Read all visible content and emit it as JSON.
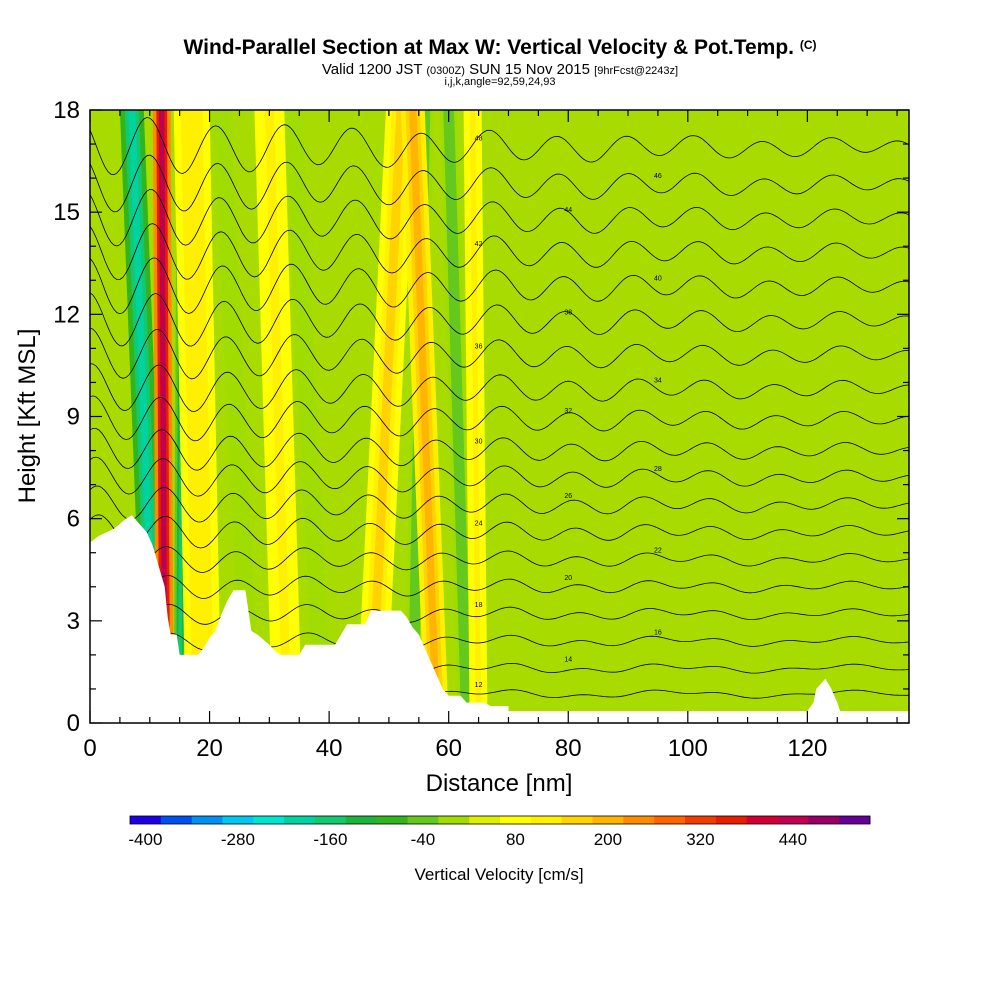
{
  "header": {
    "title": "Wind-Parallel Section at Max W: Vertical Velocity & Pot.Temp.",
    "copyright": "(C)",
    "valid_prefix": "Valid 1200 JST",
    "valid_utc": "(0300Z)",
    "valid_date": "SUN 15 Nov 2015",
    "forecast": "[9hrFcst@2243z]",
    "indices": "i,j,k,angle=92,59,24,93"
  },
  "chart_data": {
    "type": "heatmap",
    "xlabel": "Distance [nm]",
    "ylabel": "Height [Kft MSL]",
    "xlim": [
      0,
      137
    ],
    "ylim": [
      0,
      18
    ],
    "x_ticks": [
      "0",
      "20",
      "40",
      "60",
      "80",
      "100",
      "120"
    ],
    "y_ticks": [
      "0",
      "3",
      "6",
      "9",
      "12",
      "15",
      "18"
    ],
    "terrain": [
      [
        0,
        5.3
      ],
      [
        1.5,
        5.5
      ],
      [
        4,
        5.7
      ],
      [
        6,
        6.0
      ],
      [
        7,
        6.1
      ],
      [
        8,
        5.9
      ],
      [
        9.5,
        5.6
      ],
      [
        10.5,
        5.2
      ],
      [
        11.5,
        4.6
      ],
      [
        12.5,
        4.0
      ],
      [
        13,
        3.1
      ],
      [
        13.5,
        2.6
      ],
      [
        14.5,
        2.6
      ],
      [
        15,
        2.0
      ],
      [
        18,
        2.0
      ],
      [
        19,
        2.2
      ],
      [
        20,
        2.5
      ],
      [
        21,
        2.7
      ],
      [
        22,
        3.2
      ],
      [
        23,
        3.6
      ],
      [
        24,
        3.9
      ],
      [
        26,
        3.9
      ],
      [
        26.5,
        3.3
      ],
      [
        27,
        2.7
      ],
      [
        28,
        2.6
      ],
      [
        30,
        2.3
      ],
      [
        31,
        2.1
      ],
      [
        32,
        2.0
      ],
      [
        35,
        2.0
      ],
      [
        36,
        2.3
      ],
      [
        41,
        2.3
      ],
      [
        42,
        2.6
      ],
      [
        43,
        2.9
      ],
      [
        46,
        2.9
      ],
      [
        47,
        3.3
      ],
      [
        52,
        3.3
      ],
      [
        53,
        3.1
      ],
      [
        54,
        2.8
      ],
      [
        55,
        2.6
      ],
      [
        56,
        2.2
      ],
      [
        57,
        1.8
      ],
      [
        58,
        1.4
      ],
      [
        59,
        1.0
      ],
      [
        60,
        0.8
      ],
      [
        62,
        0.8
      ],
      [
        63,
        0.6
      ],
      [
        66,
        0.6
      ],
      [
        67,
        0.5
      ],
      [
        70,
        0.5
      ],
      [
        70,
        0.35
      ],
      [
        120,
        0.35
      ],
      [
        121,
        0.6
      ],
      [
        121.5,
        1.0
      ],
      [
        123,
        1.3
      ],
      [
        124,
        1.0
      ],
      [
        125,
        0.6
      ],
      [
        125.5,
        0.35
      ],
      [
        137,
        0.35
      ]
    ],
    "vertical_velocity_bands": [
      {
        "name": "downdraft",
        "base_x": 11,
        "top_x": 7,
        "width": 4,
        "value": -250
      },
      {
        "name": "updraft",
        "base_x": 12.5,
        "top_x": 12,
        "width": 3,
        "value": 400
      },
      {
        "name": "downdraft",
        "base_x": 15,
        "top_x": 15.5,
        "width": 2,
        "value": -200
      },
      {
        "name": "updraft",
        "base_x": 19,
        "top_x": 17,
        "width": 6,
        "value": 90
      },
      {
        "name": "downdraft",
        "base_x": 27,
        "top_x": 22,
        "width": 3,
        "value": -60
      },
      {
        "name": "updraft",
        "base_x": 33,
        "top_x": 30,
        "width": 5,
        "value": 70
      },
      {
        "name": "downdraft",
        "base_x": 39,
        "top_x": 34,
        "width": 3,
        "value": -60
      },
      {
        "name": "updraft",
        "base_x": 47,
        "top_x": 52,
        "width": 5,
        "value": 100
      },
      {
        "name": "downdraft",
        "base_x": 54,
        "top_x": 56,
        "width": 3,
        "value": -100
      },
      {
        "name": "updraft",
        "base_x": 58,
        "top_x": 54,
        "width": 4,
        "value": 140
      },
      {
        "name": "downdraft",
        "base_x": 63,
        "top_x": 60,
        "width": 3,
        "value": -80
      },
      {
        "name": "updraft",
        "base_x": 65,
        "top_x": 64,
        "width": 3,
        "value": 60
      }
    ],
    "potential_temperature_isolines": [
      {
        "base": 0.85,
        "amp": 0.15,
        "label": "12"
      },
      {
        "base": 1.6,
        "amp": 0.2,
        "label": "14"
      },
      {
        "base": 2.4,
        "amp": 0.25,
        "label": "16"
      },
      {
        "base": 3.2,
        "amp": 0.3,
        "label": "18"
      },
      {
        "base": 4.0,
        "amp": 0.35,
        "label": "20"
      },
      {
        "base": 4.8,
        "amp": 0.4,
        "label": "22"
      },
      {
        "base": 5.6,
        "amp": 0.5,
        "label": "24"
      },
      {
        "base": 6.4,
        "amp": 0.55,
        "label": "26"
      },
      {
        "base": 7.2,
        "amp": 0.6,
        "label": "28"
      },
      {
        "base": 8.0,
        "amp": 0.65,
        "label": "30"
      },
      {
        "base": 8.9,
        "amp": 0.7,
        "label": "32"
      },
      {
        "base": 9.8,
        "amp": 0.75,
        "label": "34"
      },
      {
        "base": 10.8,
        "amp": 0.8,
        "label": "36"
      },
      {
        "base": 11.8,
        "amp": 0.85,
        "label": "38"
      },
      {
        "base": 12.8,
        "amp": 0.9,
        "label": "40"
      },
      {
        "base": 13.8,
        "amp": 0.9,
        "label": "42"
      },
      {
        "base": 14.8,
        "amp": 0.9,
        "label": "44"
      },
      {
        "base": 15.8,
        "amp": 0.9,
        "label": "46"
      },
      {
        "base": 16.9,
        "amp": 0.9,
        "label": "48"
      }
    ],
    "colorbar": {
      "label": "Vertical Velocity [cm/s]",
      "tick_labels": [
        "-400",
        "-280",
        "-160",
        "-40",
        "80",
        "200",
        "320",
        "440"
      ],
      "colors": [
        "#1e00e6",
        "#0050f0",
        "#0090f0",
        "#00c8f0",
        "#00e6d2",
        "#00d2a0",
        "#14c86e",
        "#1eb43c",
        "#32b41e",
        "#64c81e",
        "#a0dc00",
        "#dcf000",
        "#ffff00",
        "#fff000",
        "#ffd200",
        "#ffb400",
        "#ff8c00",
        "#ff6400",
        "#f03c00",
        "#e61e00",
        "#d20032",
        "#be0050",
        "#960064",
        "#640096"
      ]
    }
  }
}
